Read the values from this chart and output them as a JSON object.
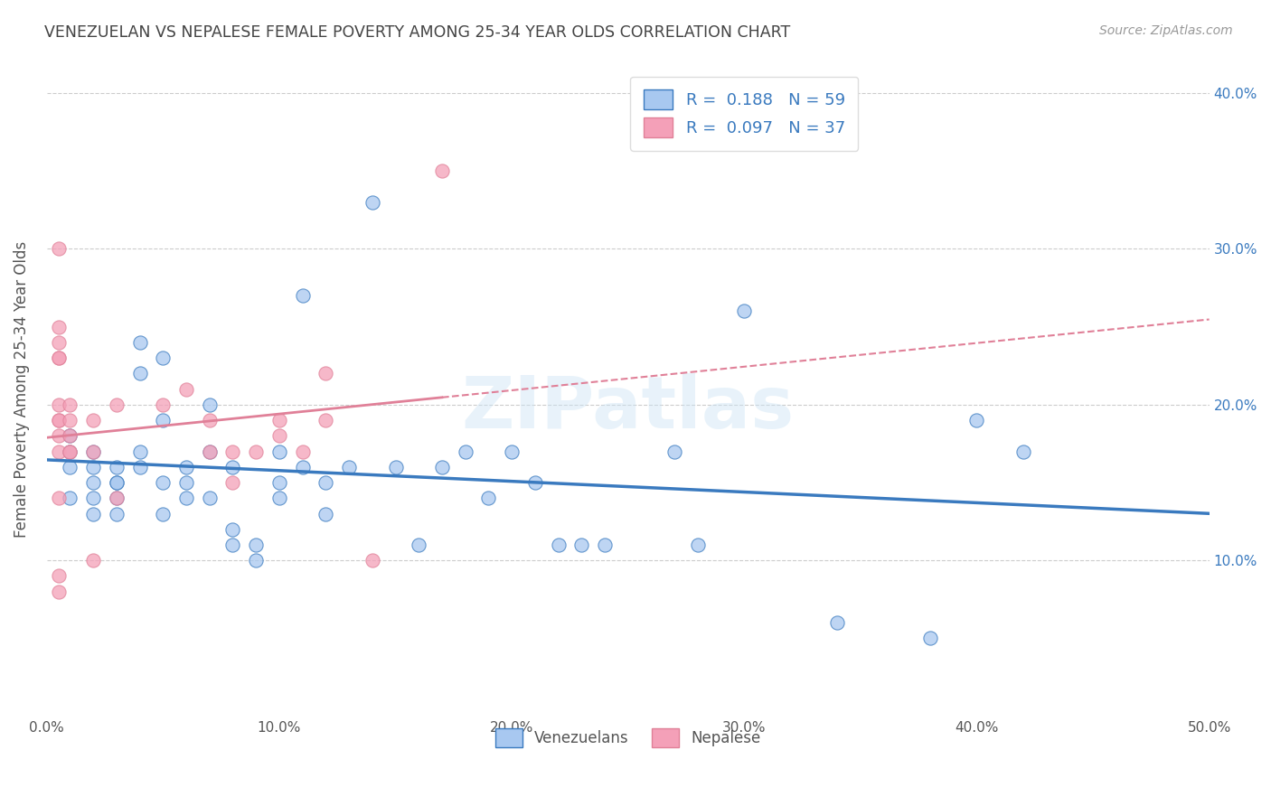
{
  "title": "VENEZUELAN VS NEPALESE FEMALE POVERTY AMONG 25-34 YEAR OLDS CORRELATION CHART",
  "source": "Source: ZipAtlas.com",
  "ylabel": "Female Poverty Among 25-34 Year Olds",
  "xlim": [
    0.0,
    0.5
  ],
  "ylim": [
    0.0,
    0.42
  ],
  "xtick_labels": [
    "0.0%",
    "10.0%",
    "20.0%",
    "30.0%",
    "40.0%",
    "50.0%"
  ],
  "xtick_vals": [
    0.0,
    0.1,
    0.2,
    0.3,
    0.4,
    0.5
  ],
  "ytick_labels_right": [
    "10.0%",
    "20.0%",
    "30.0%",
    "40.0%"
  ],
  "ytick_vals_right": [
    0.1,
    0.2,
    0.3,
    0.4
  ],
  "venezuelan_color": "#a8c8f0",
  "nepalese_color": "#f4a0b8",
  "venezuelan_R": 0.188,
  "venezuelan_N": 59,
  "nepalese_R": 0.097,
  "nepalese_N": 37,
  "venezuelan_line_color": "#3a7abf",
  "nepalese_line_color": "#e08098",
  "watermark": "ZIPatlas",
  "venezuelan_x": [
    0.02,
    0.02,
    0.02,
    0.02,
    0.02,
    0.01,
    0.01,
    0.01,
    0.01,
    0.03,
    0.03,
    0.03,
    0.03,
    0.03,
    0.04,
    0.04,
    0.04,
    0.04,
    0.05,
    0.05,
    0.05,
    0.05,
    0.06,
    0.06,
    0.06,
    0.07,
    0.07,
    0.07,
    0.08,
    0.08,
    0.08,
    0.09,
    0.09,
    0.1,
    0.1,
    0.1,
    0.11,
    0.11,
    0.12,
    0.12,
    0.13,
    0.14,
    0.15,
    0.16,
    0.17,
    0.18,
    0.19,
    0.2,
    0.21,
    0.22,
    0.23,
    0.24,
    0.27,
    0.28,
    0.3,
    0.34,
    0.38,
    0.4,
    0.42
  ],
  "venezuelan_y": [
    0.15,
    0.16,
    0.17,
    0.14,
    0.13,
    0.16,
    0.17,
    0.18,
    0.14,
    0.14,
    0.15,
    0.13,
    0.16,
    0.15,
    0.22,
    0.24,
    0.16,
    0.17,
    0.19,
    0.23,
    0.13,
    0.15,
    0.15,
    0.16,
    0.14,
    0.14,
    0.2,
    0.17,
    0.12,
    0.11,
    0.16,
    0.11,
    0.1,
    0.17,
    0.15,
    0.14,
    0.27,
    0.16,
    0.15,
    0.13,
    0.16,
    0.33,
    0.16,
    0.11,
    0.16,
    0.17,
    0.14,
    0.17,
    0.15,
    0.11,
    0.11,
    0.11,
    0.17,
    0.11,
    0.26,
    0.06,
    0.05,
    0.19,
    0.17
  ],
  "nepalese_x": [
    0.005,
    0.005,
    0.005,
    0.005,
    0.005,
    0.005,
    0.005,
    0.005,
    0.005,
    0.005,
    0.005,
    0.005,
    0.005,
    0.01,
    0.01,
    0.01,
    0.01,
    0.01,
    0.02,
    0.02,
    0.02,
    0.03,
    0.03,
    0.05,
    0.06,
    0.07,
    0.07,
    0.08,
    0.08,
    0.09,
    0.1,
    0.1,
    0.11,
    0.12,
    0.12,
    0.14,
    0.17
  ],
  "nepalese_y": [
    0.14,
    0.17,
    0.18,
    0.19,
    0.19,
    0.2,
    0.23,
    0.23,
    0.24,
    0.25,
    0.3,
    0.09,
    0.08,
    0.17,
    0.18,
    0.19,
    0.2,
    0.17,
    0.1,
    0.17,
    0.19,
    0.14,
    0.2,
    0.2,
    0.21,
    0.17,
    0.19,
    0.17,
    0.15,
    0.17,
    0.18,
    0.19,
    0.17,
    0.22,
    0.19,
    0.1,
    0.35
  ],
  "background_color": "#ffffff",
  "grid_color": "#cccccc",
  "title_color": "#444444",
  "axis_label_color": "#555555"
}
